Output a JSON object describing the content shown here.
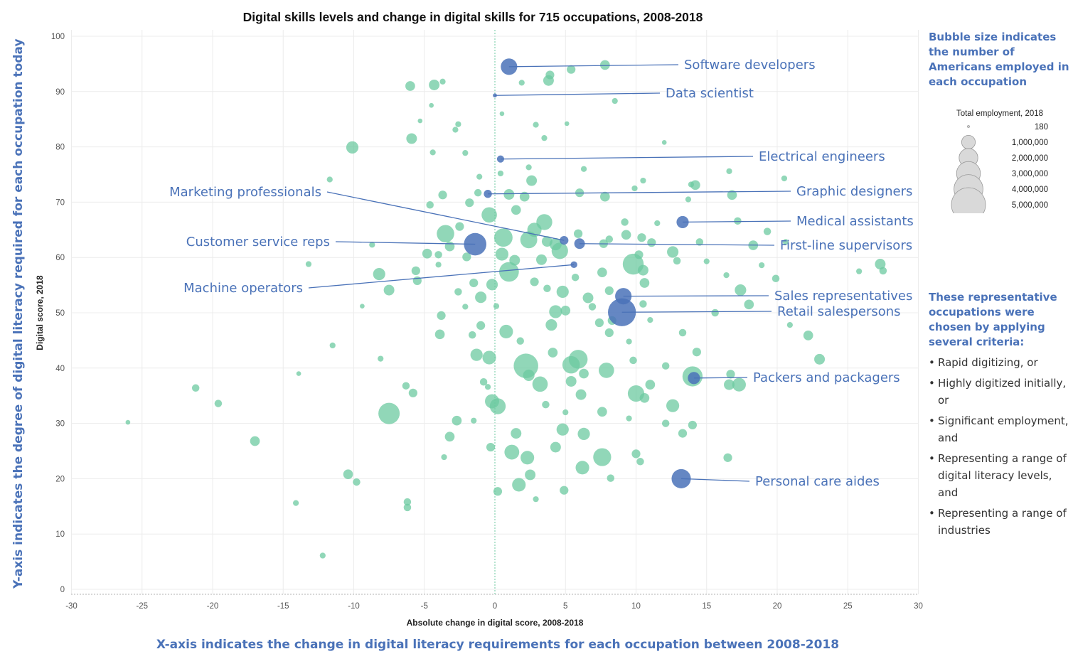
{
  "chart_data": {
    "type": "scatter",
    "title": "Digital skills levels and change in digital skills for 715 occupations, 2008-2018",
    "xlabel": "Absolute change in digital score, 2008-2018",
    "ylabel": "Digital score, 2018",
    "xlim": [
      -30,
      30
    ],
    "ylim": [
      0,
      100
    ],
    "x_ticks": [
      -30,
      -25,
      -20,
      -15,
      -10,
      -5,
      0,
      5,
      10,
      15,
      20,
      25,
      30
    ],
    "y_ticks": [
      0,
      10,
      20,
      30,
      40,
      50,
      60,
      70,
      80,
      90,
      100
    ],
    "grid": true,
    "colors": {
      "other": "#6cc9a0",
      "highlight": "#4a72b8"
    },
    "size_legend": {
      "title": "Total employment, 2018",
      "entries": [
        "180",
        "1,000,000",
        "2,000,000",
        "3,000,000",
        "4,000,000",
        "5,000,000"
      ]
    },
    "highlighted": [
      {
        "name": "Software developers",
        "x": 1.0,
        "y": 94.5,
        "employment": 1400000
      },
      {
        "name": "Data scientist",
        "x": 0.0,
        "y": 89.3,
        "employment": 30000
      },
      {
        "name": "Electrical engineers",
        "x": 0.4,
        "y": 77.8,
        "employment": 180000
      },
      {
        "name": "Marketing professionals",
        "x": 4.9,
        "y": 63.1,
        "employment": 300000
      },
      {
        "name": "Graphic designers",
        "x": -0.5,
        "y": 71.5,
        "employment": 250000
      },
      {
        "name": "Medical assistants",
        "x": 13.3,
        "y": 66.4,
        "employment": 700000
      },
      {
        "name": "Customer service reps",
        "x": -1.4,
        "y": 62.4,
        "employment": 2800000
      },
      {
        "name": "First-line supervisors",
        "x": 6.0,
        "y": 62.5,
        "employment": 500000
      },
      {
        "name": "Machine operators",
        "x": 5.6,
        "y": 58.7,
        "employment": 150000
      },
      {
        "name": "Sales representatives",
        "x": 9.1,
        "y": 53.0,
        "employment": 1400000
      },
      {
        "name": "Retail salespersons",
        "x": 9.0,
        "y": 50.1,
        "employment": 4500000
      },
      {
        "name": "Packers and packagers",
        "x": 14.1,
        "y": 38.2,
        "employment": 700000
      },
      {
        "name": "Personal care aides",
        "x": 13.2,
        "y": 20.0,
        "employment": 2000000
      }
    ],
    "other_points": [
      [
        -6,
        91,
        0.4
      ],
      [
        -4.3,
        91.2,
        0.5
      ],
      [
        -3.7,
        91.8,
        0.1
      ],
      [
        5.4,
        94,
        0.3
      ],
      [
        7.8,
        94.8,
        0.4
      ],
      [
        3.9,
        93,
        0.3
      ],
      [
        3.8,
        92,
        0.5
      ],
      [
        1.9,
        91.6,
        0.1
      ],
      [
        8.5,
        88.3,
        0.1
      ],
      [
        -5.9,
        81.5,
        0.5
      ],
      [
        -10.1,
        79.9,
        0.7
      ],
      [
        -4.4,
        79,
        0.1
      ],
      [
        -2.8,
        83.1,
        0.1
      ],
      [
        -2.6,
        84.1,
        0.1
      ],
      [
        3.5,
        81.6,
        0.1
      ],
      [
        2.9,
        84,
        0.1
      ],
      [
        -5.3,
        84.7,
        0.05
      ],
      [
        12,
        80.8,
        0.05
      ],
      [
        -11.7,
        74.1,
        0.1
      ],
      [
        -4.6,
        69.5,
        0.2
      ],
      [
        -3.7,
        71.3,
        0.3
      ],
      [
        2.6,
        73.9,
        0.5
      ],
      [
        13.9,
        73.2,
        0.1
      ],
      [
        14.2,
        73.1,
        0.4
      ],
      [
        16.6,
        75.6,
        0.1
      ],
      [
        -1.2,
        71.7,
        0.2
      ],
      [
        1.0,
        71.4,
        0.5
      ],
      [
        2.1,
        71.0,
        0.4
      ],
      [
        6.0,
        71.7,
        0.3
      ],
      [
        7.8,
        71.0,
        0.4
      ],
      [
        9.9,
        72.5,
        0.1
      ],
      [
        16.8,
        71.3,
        0.4
      ],
      [
        -0.4,
        67.7,
        1.2
      ],
      [
        3.5,
        66.4,
        1.3
      ],
      [
        9.3,
        64.1,
        0.4
      ],
      [
        11.1,
        62.7,
        0.3
      ],
      [
        10.2,
        60.5,
        0.3
      ],
      [
        12.6,
        61.0,
        0.6
      ],
      [
        14.5,
        62.8,
        0.2
      ],
      [
        18.3,
        62.2,
        0.4
      ],
      [
        -3.5,
        64.3,
        1.6
      ],
      [
        -3.2,
        62.0,
        0.4
      ],
      [
        -4.8,
        60.7,
        0.4
      ],
      [
        -4.0,
        60.5,
        0.2
      ],
      [
        -5.6,
        57.6,
        0.3
      ],
      [
        -5.5,
        55.8,
        0.3
      ],
      [
        -8.2,
        57.0,
        0.7
      ],
      [
        -7.5,
        54.1,
        0.5
      ],
      [
        -1.5,
        55.4,
        0.3
      ],
      [
        -0.2,
        55.1,
        0.6
      ],
      [
        0.6,
        63.6,
        1.8
      ],
      [
        2.4,
        63.2,
        1.5
      ],
      [
        2.8,
        65.0,
        1.0
      ],
      [
        4.3,
        62.4,
        0.7
      ],
      [
        4.6,
        61.2,
        1.4
      ],
      [
        0.5,
        60.6,
        0.8
      ],
      [
        1.4,
        59.5,
        0.5
      ],
      [
        1.0,
        57.4,
        2.1
      ],
      [
        3.3,
        59.6,
        0.5
      ],
      [
        7.6,
        57.3,
        0.4
      ],
      [
        9.8,
        58.8,
        2.4
      ],
      [
        10.5,
        57.7,
        0.5
      ],
      [
        10.6,
        55.4,
        0.4
      ],
      [
        4.8,
        53.8,
        0.7
      ],
      [
        6.6,
        52.7,
        0.5
      ],
      [
        8.1,
        54.0,
        0.3
      ],
      [
        17.4,
        54.1,
        0.6
      ],
      [
        18.0,
        51.5,
        0.4
      ],
      [
        19.9,
        56.2,
        0.2
      ],
      [
        27.3,
        58.8,
        0.5
      ],
      [
        27.5,
        57.6,
        0.2
      ],
      [
        -1.0,
        52.8,
        0.6
      ],
      [
        0.1,
        51.2,
        0.1
      ],
      [
        4.3,
        50.2,
        0.8
      ],
      [
        5.0,
        50.4,
        0.4
      ],
      [
        8.3,
        48.6,
        0.3
      ],
      [
        -3.8,
        49.5,
        0.3
      ],
      [
        -3.9,
        46.1,
        0.4
      ],
      [
        -1.0,
        47.7,
        0.3
      ],
      [
        0.8,
        46.6,
        0.9
      ],
      [
        4.0,
        47.8,
        0.6
      ],
      [
        7.4,
        48.2,
        0.3
      ],
      [
        8.1,
        46.4,
        0.3
      ],
      [
        22.2,
        45.9,
        0.4
      ],
      [
        -1.3,
        42.4,
        0.7
      ],
      [
        -0.4,
        41.9,
        0.9
      ],
      [
        2.2,
        40.4,
        3.4
      ],
      [
        2.4,
        38.7,
        0.6
      ],
      [
        3.2,
        37.1,
        1.2
      ],
      [
        4.1,
        42.8,
        0.4
      ],
      [
        5.4,
        40.6,
        1.6
      ],
      [
        5.9,
        41.6,
        1.9
      ],
      [
        6.3,
        39.0,
        0.4
      ],
      [
        7.9,
        39.6,
        1.2
      ],
      [
        5.4,
        37.6,
        0.5
      ],
      [
        10.0,
        35.4,
        1.4
      ],
      [
        10.6,
        34.6,
        0.4
      ],
      [
        11.0,
        37.0,
        0.4
      ],
      [
        12.1,
        40.4,
        0.2
      ],
      [
        14.0,
        38.5,
        2.2
      ],
      [
        14.3,
        42.9,
        0.3
      ],
      [
        16.6,
        37.0,
        0.5
      ],
      [
        17.3,
        37.0,
        0.9
      ],
      [
        16.7,
        38.9,
        0.3
      ],
      [
        23.0,
        41.6,
        0.5
      ],
      [
        -7.5,
        31.8,
        2.5
      ],
      [
        -0.2,
        34.0,
        1.0
      ],
      [
        0.2,
        33.1,
        1.3
      ],
      [
        -2.7,
        30.5,
        0.4
      ],
      [
        -3.2,
        27.6,
        0.4
      ],
      [
        -5.8,
        35.5,
        0.3
      ],
      [
        6.1,
        35.2,
        0.5
      ],
      [
        7.6,
        32.1,
        0.4
      ],
      [
        12.6,
        33.2,
        0.8
      ],
      [
        4.8,
        28.9,
        0.7
      ],
      [
        6.3,
        28.1,
        0.7
      ],
      [
        1.5,
        28.2,
        0.5
      ],
      [
        -0.3,
        25.7,
        0.3
      ],
      [
        1.2,
        24.8,
        1.1
      ],
      [
        2.3,
        23.8,
        0.9
      ],
      [
        4.3,
        25.7,
        0.5
      ],
      [
        6.2,
        22.0,
        0.9
      ],
      [
        7.6,
        23.9,
        1.7
      ],
      [
        10.0,
        24.5,
        0.3
      ],
      [
        2.5,
        20.7,
        0.5
      ],
      [
        1.7,
        18.9,
        0.9
      ],
      [
        0.2,
        17.7,
        0.3
      ],
      [
        4.9,
        17.9,
        0.3
      ],
      [
        -17.0,
        26.8,
        0.4
      ],
      [
        -19.6,
        33.6,
        0.2
      ],
      [
        -21.2,
        36.4,
        0.2
      ],
      [
        -10.4,
        20.8,
        0.4
      ],
      [
        -9.8,
        19.4,
        0.2
      ],
      [
        -6.2,
        15.8,
        0.2
      ],
      [
        -6.2,
        14.8,
        0.2
      ],
      [
        -12.2,
        6.1,
        0.1
      ],
      [
        -14.1,
        15.6,
        0.1
      ],
      [
        -26,
        30.2,
        0.05
      ],
      [
        13.3,
        28.2,
        0.3
      ],
      [
        14.0,
        29.7,
        0.3
      ],
      [
        16.5,
        23.8,
        0.3
      ],
      [
        -8.1,
        41.7,
        0.1
      ],
      [
        -6.3,
        36.8,
        0.2
      ],
      [
        -4.0,
        58.7,
        0.1
      ],
      [
        -2.0,
        60.1,
        0.3
      ],
      [
        -2.5,
        65.6,
        0.3
      ],
      [
        -1.8,
        69.9,
        0.3
      ],
      [
        1.5,
        68.6,
        0.4
      ],
      [
        3.7,
        62.9,
        0.5
      ],
      [
        5.9,
        64.3,
        0.3
      ],
      [
        7.7,
        62.5,
        0.3
      ],
      [
        8.1,
        63.3,
        0.2
      ],
      [
        9.2,
        66.4,
        0.2
      ],
      [
        10.4,
        63.6,
        0.3
      ],
      [
        11.5,
        66.2,
        0.1
      ],
      [
        12.9,
        59.4,
        0.2
      ],
      [
        15.0,
        59.3,
        0.1
      ],
      [
        16.4,
        56.8,
        0.1
      ],
      [
        2.8,
        55.6,
        0.3
      ],
      [
        3.7,
        54.4,
        0.2
      ],
      [
        5.7,
        56.4,
        0.2
      ],
      [
        6.9,
        51.1,
        0.2
      ],
      [
        10.5,
        51.6,
        0.2
      ],
      [
        11.0,
        48.7,
        0.1
      ],
      [
        13.3,
        46.4,
        0.2
      ],
      [
        -2.6,
        53.8,
        0.2
      ],
      [
        -2.1,
        51.1,
        0.1
      ],
      [
        -1.6,
        46.0,
        0.2
      ],
      [
        1.8,
        44.9,
        0.2
      ],
      [
        9.5,
        44.8,
        0.1
      ],
      [
        9.8,
        41.4,
        0.2
      ],
      [
        -0.8,
        37.5,
        0.2
      ],
      [
        -0.5,
        36.6,
        0.1
      ],
      [
        3.6,
        33.4,
        0.2
      ],
      [
        5.0,
        32.0,
        0.1
      ],
      [
        9.5,
        30.9,
        0.1
      ],
      [
        12.1,
        30.0,
        0.2
      ],
      [
        -1.5,
        30.5,
        0.1
      ],
      [
        -3.6,
        23.9,
        0.1
      ],
      [
        8.2,
        20.1,
        0.2
      ],
      [
        10.3,
        23.1,
        0.2
      ],
      [
        2.9,
        16.3,
        0.1
      ],
      [
        20.5,
        74.3,
        0.1
      ],
      [
        25.8,
        57.5,
        0.1
      ],
      [
        15.6,
        50.0,
        0.2
      ],
      [
        18.9,
        58.6,
        0.1
      ],
      [
        -8.7,
        62.3,
        0.1
      ],
      [
        -13.2,
        58.8,
        0.1
      ],
      [
        -11.5,
        44.1,
        0.1
      ],
      [
        20.9,
        47.8,
        0.1
      ],
      [
        -1.1,
        74.6,
        0.1
      ],
      [
        0.4,
        75.2,
        0.1
      ],
      [
        2.4,
        76.3,
        0.1
      ],
      [
        6.3,
        76.0,
        0.1
      ],
      [
        10.5,
        73.9,
        0.1
      ],
      [
        13.7,
        70.5,
        0.1
      ],
      [
        -2.1,
        78.9,
        0.1
      ],
      [
        -4.5,
        87.5,
        0.05
      ],
      [
        0.5,
        86.0,
        0.05
      ],
      [
        5.1,
        84.2,
        0.05
      ],
      [
        19.3,
        64.7,
        0.2
      ],
      [
        17.2,
        66.6,
        0.2
      ],
      [
        20.6,
        62.8,
        0.1
      ],
      [
        -9.4,
        51.2,
        0.05
      ],
      [
        -13.9,
        39.0,
        0.05
      ]
    ]
  }
}
